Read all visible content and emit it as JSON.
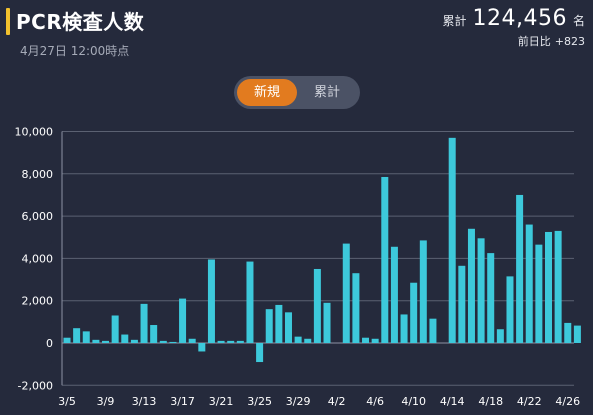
{
  "header": {
    "title": "PCR検査人数",
    "timestamp": "4月27日 12:00時点",
    "total_label": "累計",
    "total_value": "124,456",
    "total_unit": "名",
    "diff_label": "前日比",
    "diff_value": "+823",
    "accent_color": "#f2c12e"
  },
  "toggle": {
    "options": [
      "新規",
      "累計"
    ],
    "selected": "新規",
    "active_color": "#e27b1f"
  },
  "chart_data": {
    "type": "bar",
    "ylim": [
      -2000,
      10000
    ],
    "yticks": [
      -2000,
      0,
      2000,
      4000,
      6000,
      8000,
      10000
    ],
    "ytick_labels": [
      "-2,000",
      "0",
      "2,000",
      "4,000",
      "6,000",
      "8,000",
      "10,000"
    ],
    "xtick_labels": [
      "3/5",
      "3/9",
      "3/13",
      "3/17",
      "3/21",
      "3/25",
      "3/29",
      "4/2",
      "4/6",
      "4/10",
      "4/14",
      "4/18",
      "4/22",
      "4/26"
    ],
    "xtick_every": 4,
    "bar_color": "#3dc9db",
    "grid": true,
    "categories": [
      "3/5",
      "3/6",
      "3/7",
      "3/8",
      "3/9",
      "3/10",
      "3/11",
      "3/12",
      "3/13",
      "3/14",
      "3/15",
      "3/16",
      "3/17",
      "3/18",
      "3/19",
      "3/20",
      "3/21",
      "3/22",
      "3/23",
      "3/24",
      "3/25",
      "3/26",
      "3/27",
      "3/28",
      "3/29",
      "3/30",
      "3/31",
      "4/1",
      "4/2",
      "4/3",
      "4/4",
      "4/5",
      "4/6",
      "4/7",
      "4/8",
      "4/9",
      "4/10",
      "4/11",
      "4/12",
      "4/13",
      "4/14",
      "4/15",
      "4/16",
      "4/17",
      "4/18",
      "4/19",
      "4/20",
      "4/21",
      "4/22",
      "4/23",
      "4/24",
      "4/25",
      "4/26",
      "4/27"
    ],
    "values": [
      250,
      700,
      550,
      150,
      100,
      1300,
      400,
      150,
      1850,
      850,
      100,
      50,
      2100,
      200,
      -400,
      3950,
      100,
      100,
      100,
      3850,
      -900,
      1600,
      1800,
      1450,
      300,
      200,
      3500,
      1900,
      0,
      4700,
      3300,
      250,
      200,
      7850,
      4550,
      1350,
      2850,
      4850,
      1150,
      0,
      9700,
      3650,
      5400,
      4950,
      4250,
      650,
      3150,
      7000,
      5600,
      4650,
      5250,
      5300,
      950,
      823
    ]
  }
}
